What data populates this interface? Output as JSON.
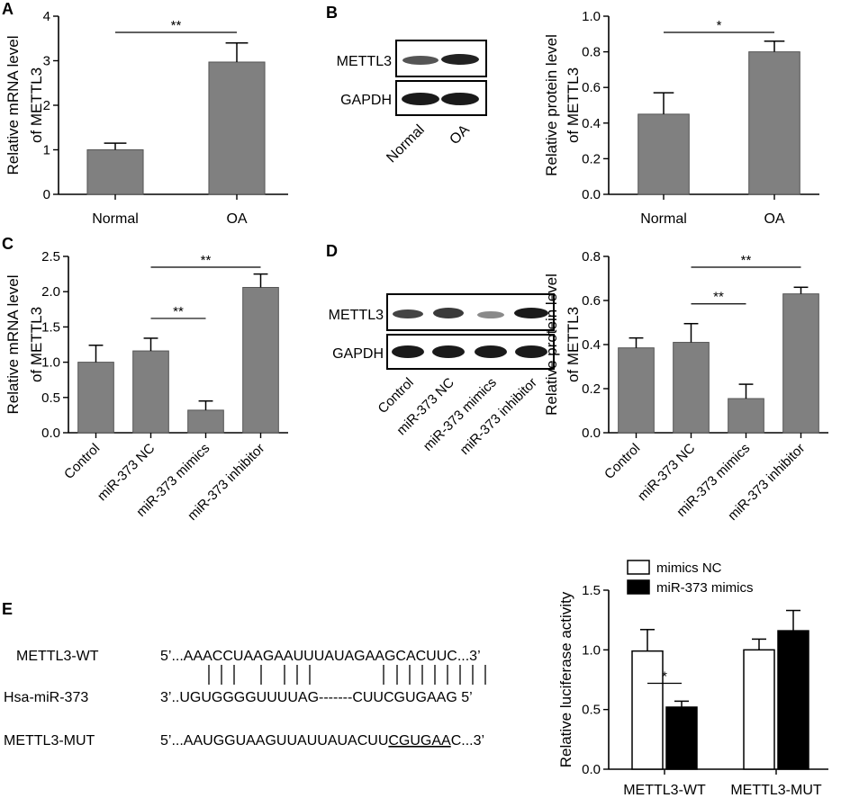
{
  "panel_letters": {
    "A": "A",
    "B": "B",
    "C": "C",
    "D": "D",
    "E": "E"
  },
  "blots": {
    "B": {
      "rows": [
        "METTL3",
        "GAPDH"
      ],
      "lanes": [
        "Normal",
        "OA"
      ]
    },
    "D": {
      "rows": [
        "METTL3",
        "GAPDH"
      ],
      "lanes": [
        "Control",
        "miR-373 NC",
        "miR-373 mimics",
        "miR-373 inhibitor"
      ]
    }
  },
  "sequences": {
    "wt_label": "METTL3-WT",
    "wt_seq": "5’...AAACCUAAGAAUUUAUAGAAGCACUUC...3’",
    "mir_label": "Hsa-miR-373",
    "mir_seq": "3’..UGUGGGGUUUUAG-------CUUCGUGAAG 5’",
    "mut_label": "METTL3-MUT",
    "mut_prefix": "5’...AAUGGUAAGUUAUUAUACUU",
    "mut_underlined": "CGUGAA",
    "mut_suffix": "C...3’"
  },
  "chart_data": [
    {
      "panel": "A",
      "type": "bar",
      "categories": [
        "Normal",
        "OA"
      ],
      "values": [
        1.0,
        2.97
      ],
      "errors": [
        0.15,
        0.43
      ],
      "ylabel": [
        "Relative mRNA level",
        "of METTL3"
      ],
      "ylim": [
        0,
        4
      ],
      "yticks": [
        "0",
        "1",
        "2",
        "3",
        "4"
      ],
      "ytick_values": [
        0,
        1,
        2,
        3,
        4
      ],
      "significance": [
        {
          "from": 0,
          "to": 1,
          "label": "**"
        }
      ],
      "color": "#808080"
    },
    {
      "panel": "B",
      "type": "bar",
      "categories": [
        "Normal",
        "OA"
      ],
      "values": [
        0.45,
        0.8
      ],
      "errors": [
        0.12,
        0.06
      ],
      "ylabel": [
        "Relative protein level",
        "of METTL3"
      ],
      "ylim": [
        0,
        1.0
      ],
      "yticks": [
        "0.0",
        "0.2",
        "0.4",
        "0.6",
        "0.8",
        "1.0"
      ],
      "ytick_values": [
        0,
        0.2,
        0.4,
        0.6,
        0.8,
        1.0
      ],
      "significance": [
        {
          "from": 0,
          "to": 1,
          "label": "*"
        }
      ],
      "color": "#808080"
    },
    {
      "panel": "C",
      "type": "bar",
      "categories": [
        "Control",
        "miR-373 NC",
        "miR-373 mimics",
        "miR-373 inhibitor"
      ],
      "values": [
        1.0,
        1.16,
        0.32,
        2.06
      ],
      "errors": [
        0.24,
        0.18,
        0.13,
        0.19
      ],
      "ylabel": [
        "Relative mRNA level",
        "of METTL3"
      ],
      "ylim": [
        0,
        2.5
      ],
      "yticks": [
        "0.0",
        "0.5",
        "1.0",
        "1.5",
        "2.0",
        "2.5"
      ],
      "ytick_values": [
        0,
        0.5,
        1.0,
        1.5,
        2.0,
        2.5
      ],
      "significance": [
        {
          "from": 1,
          "to": 2,
          "label": "**"
        },
        {
          "from": 1,
          "to": 3,
          "label": "**"
        }
      ],
      "color": "#808080"
    },
    {
      "panel": "D",
      "type": "bar",
      "categories": [
        "Control",
        "miR-373 NC",
        "miR-373 mimics",
        "miR-373 inhibitor"
      ],
      "values": [
        0.385,
        0.41,
        0.155,
        0.63
      ],
      "errors": [
        0.045,
        0.085,
        0.065,
        0.03
      ],
      "ylabel": [
        "Relative protein level",
        "of METTL3"
      ],
      "ylim": [
        0,
        0.8
      ],
      "yticks": [
        "0.0",
        "0.2",
        "0.4",
        "0.6",
        "0.8"
      ],
      "ytick_values": [
        0,
        0.2,
        0.4,
        0.6,
        0.8
      ],
      "significance": [
        {
          "from": 1,
          "to": 2,
          "label": "**"
        },
        {
          "from": 1,
          "to": 3,
          "label": "**"
        }
      ],
      "color": "#808080"
    },
    {
      "panel": "E",
      "type": "bar",
      "categories": [
        "METTL3-WT",
        "METTL3-MUT"
      ],
      "series": [
        {
          "name": "mimics NC",
          "values": [
            0.99,
            1.0
          ],
          "errors": [
            0.18,
            0.09
          ],
          "fill": "#ffffff"
        },
        {
          "name": "miR-373 mimics",
          "values": [
            0.52,
            1.16
          ],
          "errors": [
            0.05,
            0.17
          ],
          "fill": "#000000"
        }
      ],
      "ylabel": [
        "Relative luciferase activity"
      ],
      "ylim": [
        0,
        1.5
      ],
      "yticks": [
        "0.0",
        "0.5",
        "1.0",
        "1.5"
      ],
      "ytick_values": [
        0,
        0.5,
        1.0,
        1.5
      ],
      "significance": [
        {
          "group": 0,
          "label": "*"
        }
      ],
      "legend": "top"
    }
  ]
}
